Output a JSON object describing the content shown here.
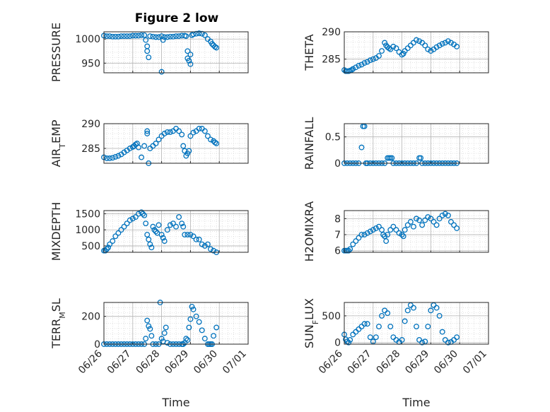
{
  "figure_title": "Figure 2 low",
  "colors": {
    "marker": "#0072BD",
    "axis": "#262626",
    "grid": "#b3b3b3"
  },
  "chart_data": [
    {
      "type": "scatter",
      "title": "Figure 2 low",
      "ylabel": "PRESSURE",
      "ylabel_sub": "",
      "ylabel_tail": "",
      "ylim": [
        930,
        1015
      ],
      "yticks": [
        950,
        1000
      ],
      "xlim": [
        0,
        5
      ],
      "xticks": [
        0,
        1,
        2,
        3,
        4,
        5
      ],
      "xticklabels": [],
      "xlabel": "",
      "grid": true,
      "x": [
        0,
        0.1,
        0.2,
        0.3,
        0.4,
        0.5,
        0.6,
        0.7,
        0.8,
        0.9,
        1.0,
        1.1,
        1.2,
        1.3,
        1.4,
        1.45,
        1.5,
        1.5,
        1.55,
        1.6,
        1.7,
        1.8,
        1.9,
        2.0,
        2.0,
        2.05,
        2.1,
        2.2,
        2.3,
        2.4,
        2.5,
        2.6,
        2.7,
        2.8,
        2.85,
        2.9,
        2.9,
        2.95,
        3.0,
        3.0,
        3.05,
        3.1,
        3.2,
        3.3,
        3.4,
        3.5,
        3.6,
        3.7,
        3.75,
        3.8,
        3.85,
        3.9
      ],
      "y": [
        1007,
        1006,
        1006,
        1005,
        1005,
        1005,
        1006,
        1006,
        1006,
        1006,
        1007,
        1007,
        1007,
        1008,
        1008,
        998,
        975,
        985,
        962,
        1006,
        1005,
        1004,
        1004,
        1006,
        932,
        998,
        1004,
        1004,
        1005,
        1005,
        1006,
        1006,
        1007,
        1007,
        1006,
        975,
        960,
        955,
        948,
        968,
        1008,
        1010,
        1011,
        1012,
        1011,
        1008,
        1000,
        995,
        990,
        987,
        984,
        982
      ]
    },
    {
      "type": "scatter",
      "title": "",
      "ylabel": "THETA",
      "ylabel_sub": "",
      "ylabel_tail": "",
      "ylim": [
        282.5,
        290
      ],
      "yticks": [
        285,
        290
      ],
      "xlim": [
        0,
        5
      ],
      "xticks": [
        0,
        1,
        2,
        3,
        4,
        5
      ],
      "xticklabels": [],
      "xlabel": "",
      "grid": true,
      "x": [
        0,
        0.05,
        0.1,
        0.15,
        0.2,
        0.25,
        0.3,
        0.4,
        0.5,
        0.6,
        0.7,
        0.8,
        0.9,
        1.0,
        1.1,
        1.2,
        1.3,
        1.4,
        1.45,
        1.5,
        1.55,
        1.6,
        1.7,
        1.8,
        1.9,
        2.0,
        2.05,
        2.1,
        2.2,
        2.3,
        2.4,
        2.5,
        2.6,
        2.7,
        2.8,
        2.9,
        3.0,
        3.1,
        3.2,
        3.3,
        3.4,
        3.5,
        3.6,
        3.7,
        3.8,
        3.9
      ],
      "y": [
        283,
        282.8,
        282.8,
        282.8,
        282.9,
        283,
        283.2,
        283.5,
        283.8,
        284,
        284.3,
        284.5,
        284.8,
        285,
        285.2,
        285.6,
        286.5,
        288,
        287.5,
        287.2,
        287,
        286.8,
        287.3,
        287,
        286.3,
        285.8,
        286,
        286.5,
        287,
        287.5,
        288,
        288.5,
        288.3,
        288,
        287.5,
        286.8,
        286.5,
        286.8,
        287.2,
        287.5,
        287.8,
        288,
        288.3,
        288,
        287.7,
        287.3
      ]
    },
    {
      "type": "scatter",
      "title": "",
      "ylabel": "AIR",
      "ylabel_sub": "T",
      "ylabel_tail": "EMP",
      "ylim": [
        282,
        290
      ],
      "yticks": [
        285,
        290
      ],
      "xlim": [
        0,
        5
      ],
      "xticks": [
        0,
        1,
        2,
        3,
        4,
        5
      ],
      "xticklabels": [],
      "xlabel": "",
      "grid": true,
      "x": [
        0,
        0.1,
        0.2,
        0.3,
        0.4,
        0.5,
        0.6,
        0.7,
        0.8,
        0.9,
        1.0,
        1.05,
        1.1,
        1.15,
        1.2,
        1.3,
        1.4,
        1.5,
        1.5,
        1.55,
        1.6,
        1.7,
        1.8,
        1.9,
        2.0,
        2.1,
        2.2,
        2.3,
        2.4,
        2.5,
        2.6,
        2.7,
        2.75,
        2.8,
        2.85,
        2.9,
        2.95,
        3.0,
        3.1,
        3.2,
        3.3,
        3.4,
        3.5,
        3.6,
        3.7,
        3.8,
        3.85,
        3.9
      ],
      "y": [
        283.2,
        283,
        283,
        283.1,
        283.3,
        283.5,
        283.8,
        284.2,
        284.6,
        285,
        285.3,
        285.5,
        285.8,
        286,
        285.2,
        283.2,
        285.5,
        288.5,
        288,
        282,
        285,
        285.5,
        286,
        286.8,
        287.5,
        288,
        288.3,
        288.3,
        288.5,
        289,
        288.5,
        287.8,
        285.5,
        284.5,
        283.5,
        284,
        284.5,
        287.5,
        288.2,
        288.5,
        289,
        289,
        288.5,
        287.5,
        286.8,
        286.5,
        286.2,
        286
      ]
    },
    {
      "type": "scatter",
      "title": "",
      "ylabel": "RAINFALL",
      "ylabel_sub": "",
      "ylabel_tail": "",
      "ylim": [
        0,
        0.75
      ],
      "yticks": [
        0,
        0.5
      ],
      "xlim": [
        0,
        5
      ],
      "xticks": [
        0,
        1,
        2,
        3,
        4,
        5
      ],
      "xticklabels": [],
      "xlabel": "",
      "grid": true,
      "x": [
        0,
        0.1,
        0.2,
        0.3,
        0.4,
        0.5,
        0.6,
        0.65,
        0.7,
        0.75,
        0.8,
        0.9,
        1.0,
        1.1,
        1.2,
        1.3,
        1.4,
        1.5,
        1.55,
        1.6,
        1.65,
        1.7,
        1.8,
        1.9,
        2.0,
        2.1,
        2.2,
        2.3,
        2.4,
        2.5,
        2.6,
        2.65,
        2.7,
        2.8,
        2.9,
        3.0,
        3.1,
        3.2,
        3.3,
        3.4,
        3.5,
        3.6,
        3.7,
        3.8,
        3.9
      ],
      "y": [
        0,
        0,
        0,
        0,
        0,
        0,
        0.3,
        0.7,
        0.7,
        0,
        0,
        0,
        0,
        0,
        0,
        0,
        0,
        0.1,
        0.1,
        0.1,
        0.1,
        0,
        0,
        0,
        0,
        0,
        0,
        0,
        0,
        0,
        0.1,
        0.1,
        0,
        0,
        0,
        0,
        0,
        0,
        0,
        0,
        0,
        0,
        0,
        0,
        0
      ]
    },
    {
      "type": "scatter",
      "title": "",
      "ylabel": "MIXDEPTH",
      "ylabel_sub": "",
      "ylabel_tail": "",
      "ylim": [
        300,
        1600
      ],
      "yticks": [
        500,
        1000,
        1500
      ],
      "xlim": [
        0,
        5
      ],
      "xticks": [
        0,
        1,
        2,
        3,
        4,
        5
      ],
      "xticklabels": [],
      "xlabel": "",
      "grid": true,
      "x": [
        0,
        0.05,
        0.1,
        0.15,
        0.2,
        0.3,
        0.4,
        0.5,
        0.6,
        0.7,
        0.8,
        0.9,
        1.0,
        1.1,
        1.2,
        1.3,
        1.35,
        1.4,
        1.45,
        1.5,
        1.55,
        1.6,
        1.65,
        1.7,
        1.75,
        1.8,
        1.85,
        1.9,
        2.0,
        2.05,
        2.1,
        2.2,
        2.3,
        2.4,
        2.5,
        2.6,
        2.7,
        2.75,
        2.8,
        2.9,
        3.0,
        3.1,
        3.2,
        3.3,
        3.4,
        3.5,
        3.6,
        3.7,
        3.8,
        3.9
      ],
      "y": [
        350,
        350,
        400,
        450,
        550,
        650,
        800,
        900,
        1000,
        1100,
        1200,
        1300,
        1350,
        1400,
        1500,
        1550,
        1500,
        1450,
        1200,
        850,
        700,
        550,
        450,
        1100,
        1000,
        950,
        900,
        1150,
        850,
        750,
        650,
        1000,
        1150,
        1200,
        1100,
        1400,
        1200,
        1100,
        850,
        850,
        850,
        800,
        700,
        700,
        550,
        500,
        550,
        400,
        350,
        300
      ]
    },
    {
      "type": "scatter",
      "title": "",
      "ylabel": "H2OMIXRA",
      "ylabel_sub": "",
      "ylabel_tail": "",
      "ylim": [
        5.9,
        8.5
      ],
      "yticks": [
        6,
        7,
        8
      ],
      "xlim": [
        0,
        5
      ],
      "xticks": [
        0,
        1,
        2,
        3,
        4,
        5
      ],
      "xticklabels": [],
      "xlabel": "",
      "grid": true,
      "x": [
        0,
        0.05,
        0.1,
        0.15,
        0.2,
        0.3,
        0.4,
        0.5,
        0.6,
        0.7,
        0.8,
        0.9,
        1.0,
        1.1,
        1.2,
        1.3,
        1.35,
        1.4,
        1.45,
        1.5,
        1.6,
        1.7,
        1.8,
        1.9,
        2.0,
        2.05,
        2.1,
        2.2,
        2.3,
        2.4,
        2.5,
        2.6,
        2.7,
        2.8,
        2.9,
        3.0,
        3.1,
        3.2,
        3.3,
        3.4,
        3.5,
        3.6,
        3.7,
        3.8,
        3.9
      ],
      "y": [
        6,
        6,
        6,
        6,
        6.1,
        6.4,
        6.6,
        6.8,
        7,
        7,
        7.1,
        7.2,
        7.3,
        7.4,
        7.5,
        7.3,
        7,
        6.9,
        6.6,
        7,
        7.3,
        7.5,
        7.3,
        7.1,
        7,
        6.9,
        7.3,
        7.6,
        7.8,
        7.5,
        8,
        7.9,
        7.6,
        7.9,
        8.1,
        8,
        7.8,
        7.6,
        8,
        8.2,
        8.3,
        8.2,
        7.8,
        7.6,
        7.4
      ]
    },
    {
      "type": "scatter",
      "title": "",
      "ylabel": "TERR",
      "ylabel_sub": "M",
      "ylabel_tail": "SL",
      "ylim": [
        0,
        300
      ],
      "yticks": [
        0,
        200
      ],
      "xlim": [
        0,
        5
      ],
      "xticks": [
        0,
        1,
        2,
        3,
        4,
        5
      ],
      "xticklabels": [
        "06/26",
        "06/27",
        "06/28",
        "06/29",
        "06/30",
        "07/01"
      ],
      "xlabel": "Time",
      "grid": true,
      "x": [
        0,
        0.1,
        0.2,
        0.3,
        0.4,
        0.5,
        0.6,
        0.7,
        0.8,
        0.9,
        1.0,
        1.1,
        1.2,
        1.3,
        1.4,
        1.45,
        1.5,
        1.55,
        1.6,
        1.65,
        1.7,
        1.8,
        1.9,
        1.95,
        2.0,
        2.05,
        2.1,
        2.15,
        2.2,
        2.3,
        2.4,
        2.5,
        2.6,
        2.7,
        2.75,
        2.8,
        2.85,
        2.9,
        2.95,
        3.0,
        3.05,
        3.1,
        3.2,
        3.3,
        3.4,
        3.5,
        3.6,
        3.65,
        3.7,
        3.75,
        3.8,
        3.9
      ],
      "y": [
        0,
        0,
        0,
        0,
        0,
        0,
        0,
        0,
        0,
        0,
        0,
        0,
        0,
        0,
        0,
        40,
        170,
        130,
        110,
        60,
        0,
        0,
        0,
        300,
        40,
        20,
        80,
        120,
        10,
        0,
        0,
        0,
        0,
        0,
        0,
        10,
        40,
        30,
        120,
        180,
        270,
        250,
        200,
        160,
        100,
        40,
        0,
        0,
        0,
        0,
        60,
        120
      ]
    },
    {
      "type": "scatter",
      "title": "",
      "ylabel": "SUN",
      "ylabel_sub": "F",
      "ylabel_tail": "LUX",
      "ylim": [
        -30,
        750
      ],
      "yticks": [
        0,
        500
      ],
      "xlim": [
        0,
        5
      ],
      "xticks": [
        0,
        1,
        2,
        3,
        4,
        5
      ],
      "xticklabels": [
        "06/26",
        "06/27",
        "06/28",
        "06/29",
        "06/30",
        "07/01"
      ],
      "xlabel": "Time",
      "grid": true,
      "x": [
        0,
        0.05,
        0.1,
        0.15,
        0.2,
        0.3,
        0.4,
        0.5,
        0.6,
        0.7,
        0.8,
        0.9,
        1.0,
        1.1,
        1.2,
        1.3,
        1.4,
        1.5,
        1.6,
        1.7,
        1.8,
        1.9,
        2.0,
        2.1,
        2.2,
        2.3,
        2.4,
        2.5,
        2.6,
        2.7,
        2.8,
        2.9,
        3.0,
        3.1,
        3.2,
        3.3,
        3.4,
        3.5,
        3.6,
        3.7,
        3.8,
        3.9
      ],
      "y": [
        150,
        60,
        20,
        0,
        50,
        150,
        200,
        250,
        300,
        350,
        350,
        100,
        20,
        100,
        300,
        500,
        600,
        550,
        300,
        100,
        50,
        10,
        50,
        400,
        600,
        700,
        650,
        300,
        50,
        0,
        20,
        300,
        600,
        700,
        650,
        500,
        200,
        50,
        0,
        10,
        50,
        100
      ]
    }
  ]
}
